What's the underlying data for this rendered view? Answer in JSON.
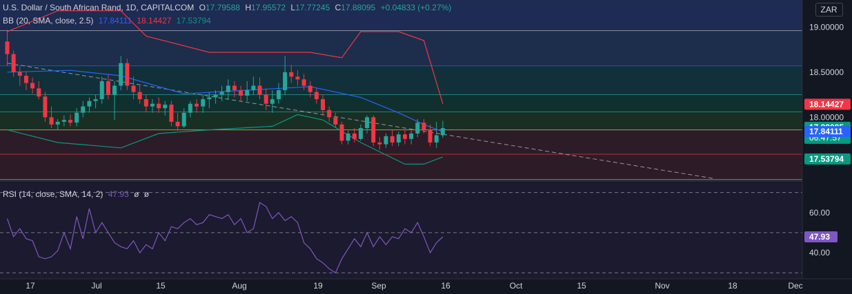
{
  "header": {
    "symbol": "U.S. Dollar / South African Rand, 1D, CAPITALCOM",
    "open_label": "O",
    "open": "17.79588",
    "high_label": "H",
    "high": "17.95572",
    "low_label": "L",
    "low": "17.77245",
    "close_label": "C",
    "close": "17.88095",
    "change": "+0.04833 (+0.27%)"
  },
  "bb_legend": {
    "label": "BB (20, SMA, close, 2.5)",
    "basis": "17.84111",
    "upper": "18.14427",
    "lower": "17.53794"
  },
  "rsi_legend": {
    "label": "RSI (14, close, SMA, 14, 2)",
    "value": "47.93",
    "extra1": "ø",
    "extra2": "ø"
  },
  "currency": "ZAR",
  "colors": {
    "up": "#26a69a",
    "down": "#f23645",
    "bb_basis": "#2962ff",
    "bb_upper": "#f23645",
    "bb_lower": "#089981",
    "rsi": "#7e57c2",
    "background": "#131722"
  },
  "chart_data": [
    {
      "type": "candlestick",
      "price_axis": {
        "ylim": [
          17.3,
          19.3
        ],
        "ticks": [
          "19.00000",
          "18.50000",
          "18.00000"
        ]
      },
      "x_axis": {
        "labels": [
          "17",
          "Jul",
          "15",
          "Aug",
          "19",
          "Sep",
          "16",
          "Oct",
          "15",
          "Nov",
          "18",
          "Dec"
        ]
      },
      "price_badges": [
        {
          "value": 18.14427,
          "label": "18.14427",
          "color": "#f23645"
        },
        {
          "value": 17.88095,
          "label": "17.88095",
          "sub": "06:47:57",
          "color": "#089981"
        },
        {
          "value": 17.84111,
          "label": "17.84111",
          "color": "#2962ff"
        },
        {
          "value": 17.53794,
          "label": "17.53794",
          "color": "#089981"
        }
      ],
      "levels": [
        18.96,
        18.57,
        18.25,
        18.06,
        17.86,
        17.59,
        17.31
      ],
      "candles": [
        [
          18.84,
          18.97,
          18.57,
          18.7
        ],
        [
          18.7,
          18.74,
          18.45,
          18.5
        ],
        [
          18.5,
          18.56,
          18.35,
          18.46
        ],
        [
          18.46,
          18.5,
          18.3,
          18.38
        ],
        [
          18.38,
          18.44,
          18.26,
          18.32
        ],
        [
          18.32,
          18.4,
          18.2,
          18.23
        ],
        [
          18.23,
          18.28,
          17.95,
          18.0
        ],
        [
          18.0,
          18.12,
          17.88,
          17.92
        ],
        [
          17.92,
          17.98,
          17.86,
          17.95
        ],
        [
          17.95,
          18.02,
          17.9,
          17.97
        ],
        [
          17.97,
          18.03,
          17.9,
          17.94
        ],
        [
          17.94,
          18.1,
          17.9,
          18.05
        ],
        [
          18.05,
          18.18,
          18.0,
          18.12
        ],
        [
          18.12,
          18.22,
          18.05,
          18.18
        ],
        [
          18.18,
          18.25,
          18.1,
          18.2
        ],
        [
          18.2,
          18.45,
          18.15,
          18.4
        ],
        [
          18.4,
          18.47,
          18.2,
          18.25
        ],
        [
          18.25,
          18.4,
          17.97,
          18.35
        ],
        [
          18.35,
          18.68,
          18.3,
          18.6
        ],
        [
          18.6,
          18.65,
          18.3,
          18.35
        ],
        [
          18.35,
          18.45,
          18.2,
          18.28
        ],
        [
          18.28,
          18.35,
          18.15,
          18.2
        ],
        [
          18.2,
          18.25,
          18.06,
          18.12
        ],
        [
          18.12,
          18.2,
          18.05,
          18.15
        ],
        [
          18.15,
          18.22,
          18.05,
          18.1
        ],
        [
          18.1,
          18.18,
          18.02,
          18.14
        ],
        [
          18.14,
          18.18,
          17.9,
          17.95
        ],
        [
          17.95,
          18.05,
          17.85,
          17.9
        ],
        [
          17.9,
          18.1,
          17.88,
          18.05
        ],
        [
          18.05,
          18.18,
          18.0,
          18.15
        ],
        [
          18.15,
          18.2,
          18.05,
          18.12
        ],
        [
          18.12,
          18.25,
          18.05,
          18.2
        ],
        [
          18.2,
          18.28,
          18.1,
          18.22
        ],
        [
          18.22,
          18.3,
          18.15,
          18.25
        ],
        [
          18.25,
          18.35,
          18.18,
          18.28
        ],
        [
          18.28,
          18.42,
          18.2,
          18.35
        ],
        [
          18.35,
          18.4,
          18.22,
          18.3
        ],
        [
          18.3,
          18.35,
          18.18,
          18.24
        ],
        [
          18.24,
          18.4,
          18.18,
          18.3
        ],
        [
          18.3,
          18.45,
          18.25,
          18.35
        ],
        [
          18.35,
          18.44,
          18.2,
          18.25
        ],
        [
          18.25,
          18.32,
          18.08,
          18.15
        ],
        [
          18.15,
          18.3,
          18.05,
          18.2
        ],
        [
          18.2,
          18.38,
          18.15,
          18.3
        ],
        [
          18.3,
          18.68,
          18.25,
          18.5
        ],
        [
          18.5,
          18.58,
          18.38,
          18.45
        ],
        [
          18.45,
          18.52,
          18.35,
          18.42
        ],
        [
          18.42,
          18.48,
          18.3,
          18.35
        ],
        [
          18.35,
          18.4,
          18.22,
          18.28
        ],
        [
          18.28,
          18.32,
          18.15,
          18.2
        ],
        [
          18.2,
          18.25,
          18.02,
          18.08
        ],
        [
          18.08,
          18.12,
          17.95,
          18.0
        ],
        [
          18.0,
          18.05,
          17.88,
          17.92
        ],
        [
          17.92,
          17.95,
          17.7,
          17.74
        ],
        [
          17.74,
          17.85,
          17.7,
          17.82
        ],
        [
          17.82,
          17.88,
          17.72,
          17.76
        ],
        [
          17.76,
          17.92,
          17.74,
          17.88
        ],
        [
          17.88,
          18.02,
          17.82,
          18.0
        ],
        [
          18.0,
          18.02,
          17.68,
          17.72
        ],
        [
          17.72,
          17.78,
          17.64,
          17.7
        ],
        [
          17.7,
          17.82,
          17.66,
          17.79
        ],
        [
          17.79,
          17.86,
          17.68,
          17.72
        ],
        [
          17.72,
          17.84,
          17.68,
          17.81
        ],
        [
          17.81,
          17.86,
          17.7,
          17.76
        ],
        [
          17.76,
          17.85,
          17.7,
          17.82
        ],
        [
          17.82,
          17.98,
          17.78,
          17.94
        ],
        [
          17.94,
          17.98,
          17.82,
          17.86
        ],
        [
          17.86,
          17.92,
          17.68,
          17.72
        ],
        [
          17.72,
          17.95,
          17.66,
          17.8
        ],
        [
          17.8,
          17.96,
          17.77,
          17.88
        ]
      ],
      "bb_upper": [
        [
          0,
          18.95
        ],
        [
          8,
          19.18
        ],
        [
          18,
          19.18
        ],
        [
          22,
          18.9
        ],
        [
          32,
          18.72
        ],
        [
          48,
          18.72
        ],
        [
          53,
          18.66
        ],
        [
          56,
          18.95
        ],
        [
          62,
          18.95
        ],
        [
          66,
          18.85
        ],
        [
          69,
          18.15
        ]
      ],
      "bb_basis": [
        [
          0,
          18.5
        ],
        [
          10,
          18.52
        ],
        [
          18,
          18.46
        ],
        [
          28,
          18.26
        ],
        [
          38,
          18.3
        ],
        [
          48,
          18.34
        ],
        [
          56,
          18.22
        ],
        [
          62,
          18.05
        ],
        [
          66,
          17.92
        ],
        [
          69,
          17.84
        ]
      ],
      "bb_lower": [
        [
          0,
          17.86
        ],
        [
          8,
          17.72
        ],
        [
          18,
          17.66
        ],
        [
          24,
          17.82
        ],
        [
          32,
          17.86
        ],
        [
          42,
          17.9
        ],
        [
          46,
          18.03
        ],
        [
          50,
          17.97
        ],
        [
          56,
          17.72
        ],
        [
          63,
          17.48
        ],
        [
          66,
          17.48
        ],
        [
          69,
          17.56
        ]
      ],
      "trendline": [
        [
          0,
          18.6
        ],
        [
          112,
          17.32
        ]
      ]
    },
    {
      "type": "line",
      "title": "RSI",
      "ylim": [
        27,
        75
      ],
      "ticks": [
        "60.00",
        "40.00"
      ],
      "levels": [
        70,
        50,
        30
      ],
      "badge": {
        "value": 47.93,
        "label": "47.93",
        "color": "#7e57c2"
      },
      "values": [
        57,
        48,
        52,
        47,
        46,
        38,
        37,
        38,
        41,
        50,
        42,
        58,
        47,
        62,
        50,
        55,
        50,
        45,
        43,
        42,
        46,
        40,
        44,
        42,
        50,
        46,
        53,
        52,
        55,
        57,
        54,
        55,
        59,
        58,
        57,
        59,
        54,
        57,
        50,
        52,
        65,
        63,
        57,
        60,
        56,
        58,
        55,
        45,
        42,
        37,
        35,
        32,
        30,
        37,
        42,
        47,
        43,
        50,
        43,
        48,
        44,
        48,
        47,
        52,
        50,
        55,
        48,
        40,
        45,
        47.93
      ]
    }
  ]
}
